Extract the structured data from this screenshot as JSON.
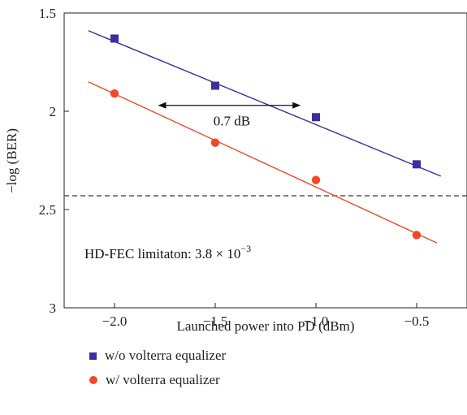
{
  "chart_data": {
    "type": "scatter",
    "xlabel": "Launched power into PD (dBm)",
    "ylabel": "−log (BER)",
    "xlim": [
      -2.25,
      -0.25
    ],
    "ylim": [
      1.5,
      3.0
    ],
    "y_inverted": true,
    "x_ticks": [
      -2.0,
      -1.5,
      -1.0,
      -0.5
    ],
    "x_tick_labels": [
      "−2.0",
      "−1.5",
      "−1.0",
      "−0.5"
    ],
    "y_ticks": [
      1.5,
      2.0,
      2.5,
      3.0
    ],
    "y_tick_labels": [
      "1.5",
      "2",
      "2.5",
      "3"
    ],
    "grid": false,
    "legend_position": "bottom-left, outside plot",
    "series": [
      {
        "name": "w/o volterra equalizer",
        "marker": "square",
        "color": "#3a2f9e",
        "x": [
          -2.0,
          -1.5,
          -1.0,
          -0.5
        ],
        "y": [
          1.63,
          1.87,
          2.03,
          2.27
        ],
        "fit": {
          "x": [
            -2.13,
            -0.38
          ],
          "y": [
            1.59,
            2.33
          ]
        }
      },
      {
        "name": "w/ volterra equalizer",
        "marker": "circle",
        "color": "#ee4a2a",
        "x": [
          -2.0,
          -1.5,
          -1.0,
          -0.5
        ],
        "y": [
          1.91,
          2.16,
          2.35,
          2.63
        ],
        "fit": {
          "x": [
            -2.13,
            -0.4
          ],
          "y": [
            1.85,
            2.67
          ]
        }
      }
    ],
    "threshold": {
      "y": 2.43,
      "style": "dashed",
      "label": "HD-FEC limitaton: 3.8 × 10",
      "label_exponent": "−3"
    },
    "gap_annotation": {
      "label": "0.7 dB",
      "x_from": -1.78,
      "x_to": -1.08,
      "y": 1.97
    }
  }
}
